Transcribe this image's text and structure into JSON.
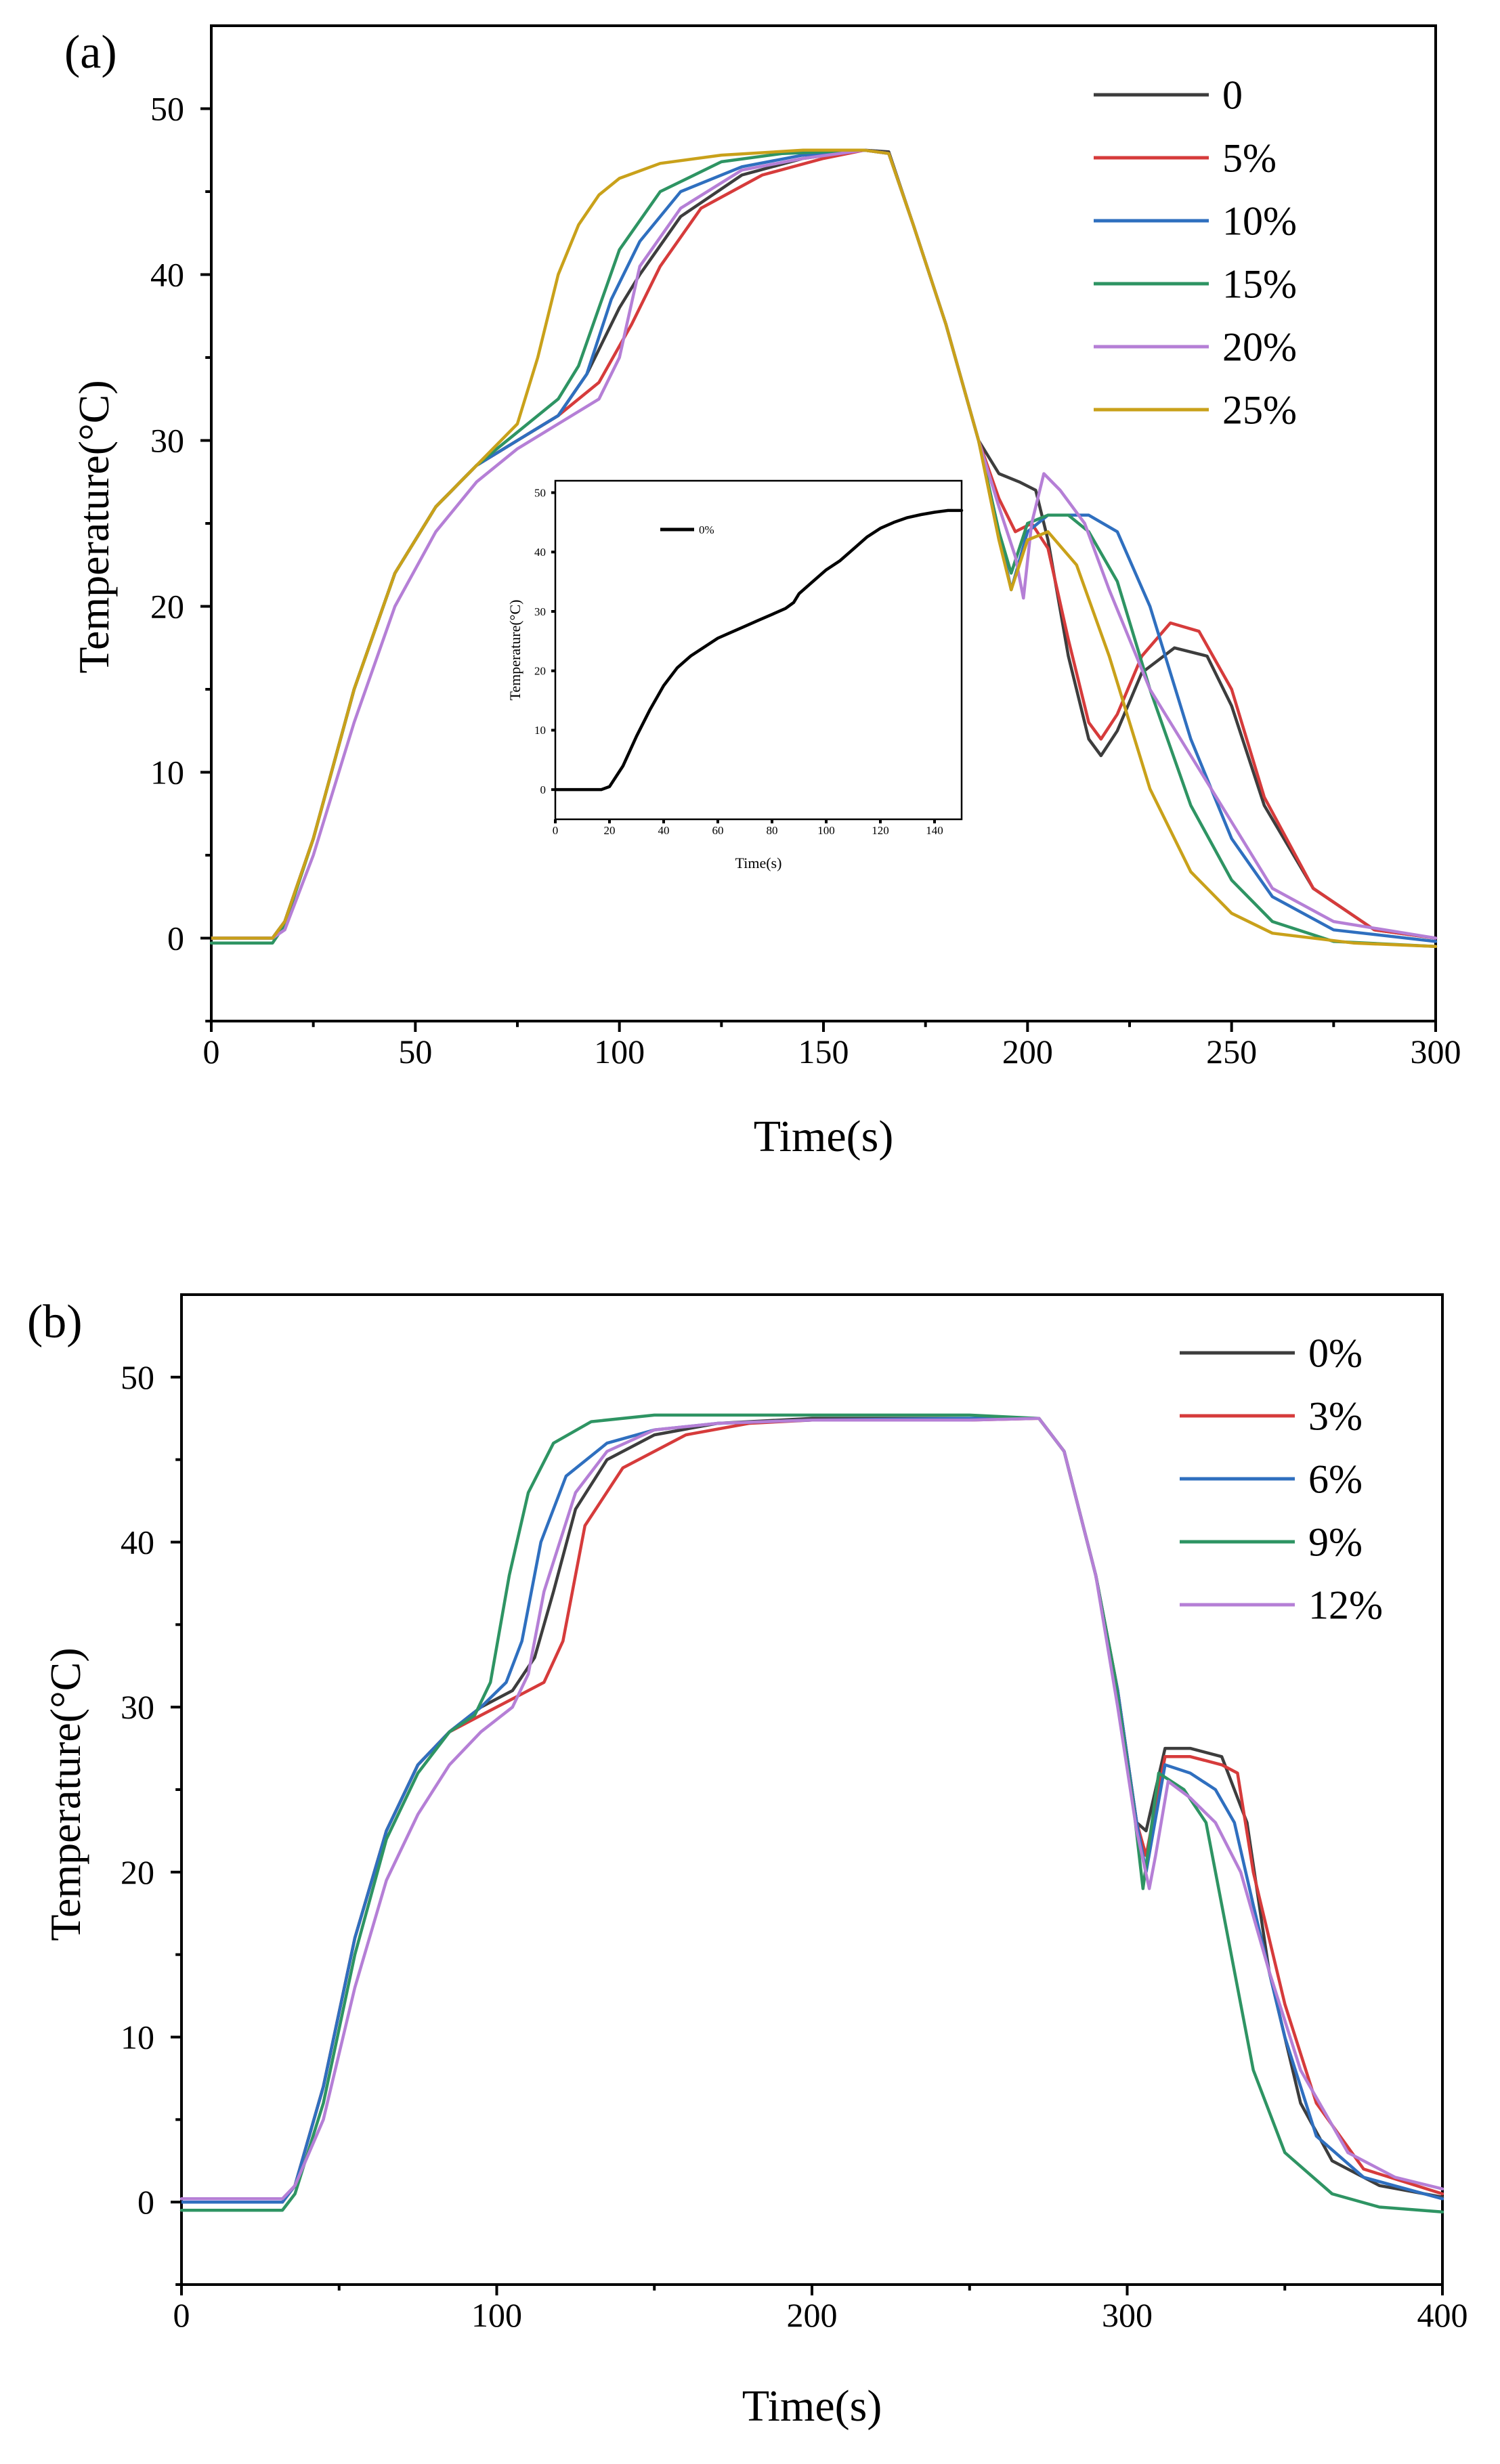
{
  "chart_data": [
    {
      "type": "line",
      "panel_label": "(a)",
      "xlabel": "Time(s)",
      "ylabel": "Temperature(°C)",
      "xlim": [
        0,
        300
      ],
      "ylim": [
        -5,
        55
      ],
      "xticks": [
        0,
        50,
        100,
        150,
        200,
        250,
        300
      ],
      "yticks": [
        0,
        10,
        20,
        30,
        40,
        50
      ],
      "legend_position": "top-right",
      "series": [
        {
          "name": "0",
          "color": "#3d3d3d",
          "x": [
            0,
            15,
            18,
            25,
            35,
            45,
            55,
            65,
            75,
            85,
            92,
            100,
            105,
            115,
            130,
            145,
            160,
            166,
            172,
            180,
            188,
            193,
            198,
            202,
            205,
            210,
            215,
            218,
            222,
            228,
            236,
            244,
            250,
            258,
            270,
            285,
            300
          ],
          "y": [
            0,
            0,
            1,
            6,
            15,
            22,
            26,
            28.5,
            30,
            31.5,
            34,
            38,
            40,
            43.5,
            46,
            47,
            47.5,
            47.4,
            43,
            37,
            30,
            28,
            27.5,
            27,
            24,
            17,
            12,
            11,
            12.5,
            16,
            17.5,
            17,
            14,
            8,
            3,
            0.5,
            0
          ]
        },
        {
          "name": "5%",
          "color": "#d63b3b",
          "x": [
            0,
            15,
            18,
            25,
            35,
            45,
            55,
            65,
            75,
            85,
            95,
            103,
            110,
            120,
            135,
            150,
            160,
            166,
            172,
            180,
            188,
            193,
            197,
            201,
            205,
            210,
            215,
            218,
            222,
            228,
            235,
            242,
            250,
            258,
            270,
            285,
            300
          ],
          "y": [
            0,
            0,
            1,
            6,
            15,
            22,
            26,
            28.5,
            30,
            31.5,
            33.5,
            37,
            40.5,
            44,
            46,
            47,
            47.5,
            47.3,
            43,
            37,
            30,
            26.5,
            24.5,
            25,
            23.5,
            18,
            13,
            12,
            13.5,
            17,
            19,
            18.5,
            15,
            8.5,
            3,
            0.5,
            0
          ]
        },
        {
          "name": "10%",
          "color": "#2f6fbf",
          "x": [
            0,
            15,
            18,
            25,
            35,
            45,
            55,
            65,
            75,
            85,
            92,
            98,
            105,
            115,
            130,
            145,
            160,
            166,
            172,
            180,
            188,
            193,
            196,
            200,
            205,
            210,
            215,
            222,
            230,
            240,
            250,
            260,
            275,
            300
          ],
          "y": [
            0,
            0,
            1,
            6,
            15,
            22,
            26,
            28.5,
            30,
            31.5,
            34,
            38.5,
            42,
            45,
            46.5,
            47.2,
            47.5,
            47.3,
            43,
            37,
            30,
            24.5,
            21,
            24.5,
            25.5,
            25.5,
            25.5,
            24.5,
            20,
            12,
            6,
            2.5,
            0.5,
            -0.2
          ]
        },
        {
          "name": "15%",
          "color": "#2e9463",
          "x": [
            0,
            15,
            18,
            25,
            35,
            45,
            55,
            65,
            75,
            85,
            90,
            95,
            100,
            110,
            125,
            140,
            160,
            166,
            172,
            180,
            188,
            193,
            196,
            200,
            205,
            210,
            215,
            222,
            230,
            240,
            250,
            260,
            275,
            300
          ],
          "y": [
            -0.3,
            -0.3,
            0.8,
            6,
            15,
            22,
            26,
            28.5,
            30.5,
            32.5,
            34.5,
            38,
            41.5,
            45,
            46.8,
            47.3,
            47.5,
            47.3,
            43,
            37,
            30,
            24.5,
            22,
            25,
            25.5,
            25.5,
            24.5,
            21.5,
            15,
            8,
            3.5,
            1,
            -0.2,
            -0.5
          ]
        },
        {
          "name": "20%",
          "color": "#b57fd6",
          "x": [
            0,
            15,
            18,
            25,
            35,
            45,
            55,
            65,
            75,
            85,
            95,
            100,
            105,
            115,
            130,
            145,
            160,
            166,
            172,
            180,
            188,
            193,
            197,
            199,
            201,
            204,
            208,
            214,
            220,
            230,
            240,
            250,
            260,
            275,
            300
          ],
          "y": [
            0,
            0,
            0.5,
            5,
            13,
            20,
            24.5,
            27.5,
            29.5,
            31,
            32.5,
            35,
            40.5,
            44,
            46.3,
            47,
            47.5,
            47.3,
            43,
            37,
            30,
            26,
            23,
            20.5,
            25,
            28,
            27,
            25,
            21,
            15,
            11,
            7,
            3,
            1,
            0
          ]
        },
        {
          "name": "25%",
          "color": "#c9a11a",
          "x": [
            0,
            15,
            18,
            25,
            35,
            45,
            55,
            65,
            75,
            80,
            85,
            90,
            95,
            100,
            110,
            125,
            145,
            160,
            166,
            172,
            180,
            188,
            193,
            196,
            200,
            205,
            212,
            220,
            230,
            240,
            250,
            260,
            280,
            300
          ],
          "y": [
            0,
            0,
            1,
            6,
            15,
            22,
            26,
            28.5,
            31,
            35,
            40,
            43,
            44.8,
            45.8,
            46.7,
            47.2,
            47.5,
            47.5,
            47.3,
            43,
            37,
            30,
            24,
            21,
            24,
            24.5,
            22.5,
            17,
            9,
            4,
            1.5,
            0.3,
            -0.3,
            -0.5
          ]
        }
      ]
    },
    {
      "type": "line",
      "panel_label": "(b)",
      "xlabel": "Time(s)",
      "ylabel": "Temperature(°C)",
      "xlim": [
        0,
        400
      ],
      "ylim": [
        -5,
        55
      ],
      "xticks": [
        0,
        100,
        200,
        300,
        400
      ],
      "yticks": [
        0,
        10,
        20,
        30,
        40,
        50
      ],
      "legend_position": "top-right",
      "series": [
        {
          "name": "0%",
          "color": "#3d3d3d",
          "x": [
            0,
            32,
            36,
            45,
            55,
            65,
            75,
            85,
            95,
            105,
            112,
            118,
            125,
            135,
            150,
            170,
            200,
            250,
            272,
            280,
            290,
            297,
            303,
            306,
            312,
            320,
            330,
            338,
            345,
            355,
            365,
            380,
            400
          ],
          "y": [
            0,
            0,
            1,
            7,
            16,
            22.5,
            26.5,
            28.5,
            30,
            31,
            33,
            37,
            42,
            45,
            46.5,
            47.2,
            47.5,
            47.5,
            47.5,
            45.5,
            38,
            31,
            23,
            22.5,
            27.5,
            27.5,
            27,
            23,
            14,
            6,
            2.5,
            1,
            0.3
          ]
        },
        {
          "name": "3%",
          "color": "#d63b3b",
          "x": [
            0,
            32,
            36,
            45,
            55,
            65,
            75,
            85,
            95,
            105,
            115,
            121,
            128,
            140,
            160,
            180,
            200,
            250,
            272,
            280,
            290,
            297,
            303,
            306,
            312,
            320,
            330,
            335,
            340,
            350,
            360,
            375,
            400
          ],
          "y": [
            0,
            0,
            1,
            7,
            16,
            22.5,
            26.5,
            28.5,
            29.5,
            30.5,
            31.5,
            34,
            41,
            44.5,
            46.5,
            47.2,
            47.4,
            47.4,
            47.5,
            45.5,
            38,
            31,
            23,
            21,
            27,
            27,
            26.5,
            26,
            20,
            12,
            6,
            2,
            0.5
          ]
        },
        {
          "name": "6%",
          "color": "#2f6fbf",
          "x": [
            0,
            32,
            36,
            45,
            55,
            65,
            75,
            85,
            95,
            103,
            108,
            114,
            122,
            135,
            150,
            170,
            200,
            250,
            272,
            280,
            290,
            297,
            303,
            306,
            312,
            320,
            328,
            334,
            340,
            350,
            360,
            375,
            400
          ],
          "y": [
            0,
            0,
            1,
            7,
            16,
            22.5,
            26.5,
            28.5,
            30,
            31.5,
            34,
            40,
            44,
            46,
            46.8,
            47.2,
            47.4,
            47.5,
            47.5,
            45.5,
            38,
            31,
            23,
            20,
            26.5,
            26,
            25,
            23,
            18,
            10,
            4,
            1.5,
            0.2
          ]
        },
        {
          "name": "9%",
          "color": "#2e9463",
          "x": [
            0,
            32,
            36,
            45,
            55,
            65,
            75,
            85,
            93,
            98,
            104,
            110,
            118,
            130,
            150,
            180,
            220,
            250,
            272,
            280,
            290,
            296,
            302,
            305,
            310,
            318,
            325,
            332,
            340,
            350,
            365,
            380,
            400
          ],
          "y": [
            -0.5,
            -0.5,
            0.5,
            6,
            15,
            22,
            26,
            28.5,
            29.5,
            31.5,
            38,
            43,
            46,
            47.3,
            47.7,
            47.7,
            47.7,
            47.7,
            47.5,
            45.5,
            38,
            32,
            24,
            19,
            26,
            25,
            23,
            16,
            8,
            3,
            0.5,
            -0.3,
            -0.6
          ]
        },
        {
          "name": "12%",
          "color": "#b57fd6",
          "x": [
            0,
            32,
            36,
            45,
            55,
            65,
            75,
            85,
            95,
            105,
            110,
            115,
            125,
            135,
            150,
            170,
            200,
            250,
            272,
            280,
            290,
            297,
            303,
            307,
            309,
            313,
            320,
            328,
            336,
            345,
            355,
            370,
            385,
            400
          ],
          "y": [
            0.2,
            0.2,
            1,
            5,
            13,
            19.5,
            23.5,
            26.5,
            28.5,
            30,
            32,
            37,
            43,
            45.5,
            46.8,
            47.2,
            47.4,
            47.4,
            47.5,
            45.5,
            38,
            30,
            22.5,
            19,
            21,
            25.5,
            24.5,
            23,
            20,
            14,
            8,
            3,
            1.5,
            0.8
          ]
        }
      ]
    }
  ],
  "inset": {
    "type": "line",
    "xlabel": "Time(s)",
    "ylabel": "Temperature(°C)",
    "xlim": [
      0,
      150
    ],
    "ylim": [
      -5,
      52
    ],
    "xticks": [
      0,
      20,
      40,
      60,
      80,
      100,
      120,
      140
    ],
    "yticks": [
      0,
      10,
      20,
      30,
      40,
      50
    ],
    "legend_position": "top-left",
    "series": [
      {
        "name": "0%",
        "color": "#000000",
        "x": [
          0,
          17,
          20,
          25,
          30,
          35,
          40,
          45,
          50,
          55,
          60,
          65,
          70,
          75,
          80,
          85,
          88,
          90,
          95,
          100,
          105,
          110,
          115,
          120,
          125,
          130,
          135,
          140,
          145,
          150
        ],
        "y": [
          0,
          0,
          0.5,
          4,
          9,
          13.5,
          17.5,
          20.5,
          22.5,
          24,
          25.5,
          26.5,
          27.5,
          28.5,
          29.5,
          30.5,
          31.5,
          33,
          35,
          37,
          38.5,
          40.5,
          42.5,
          44,
          45,
          45.8,
          46.3,
          46.7,
          47,
          47
        ]
      }
    ]
  }
}
